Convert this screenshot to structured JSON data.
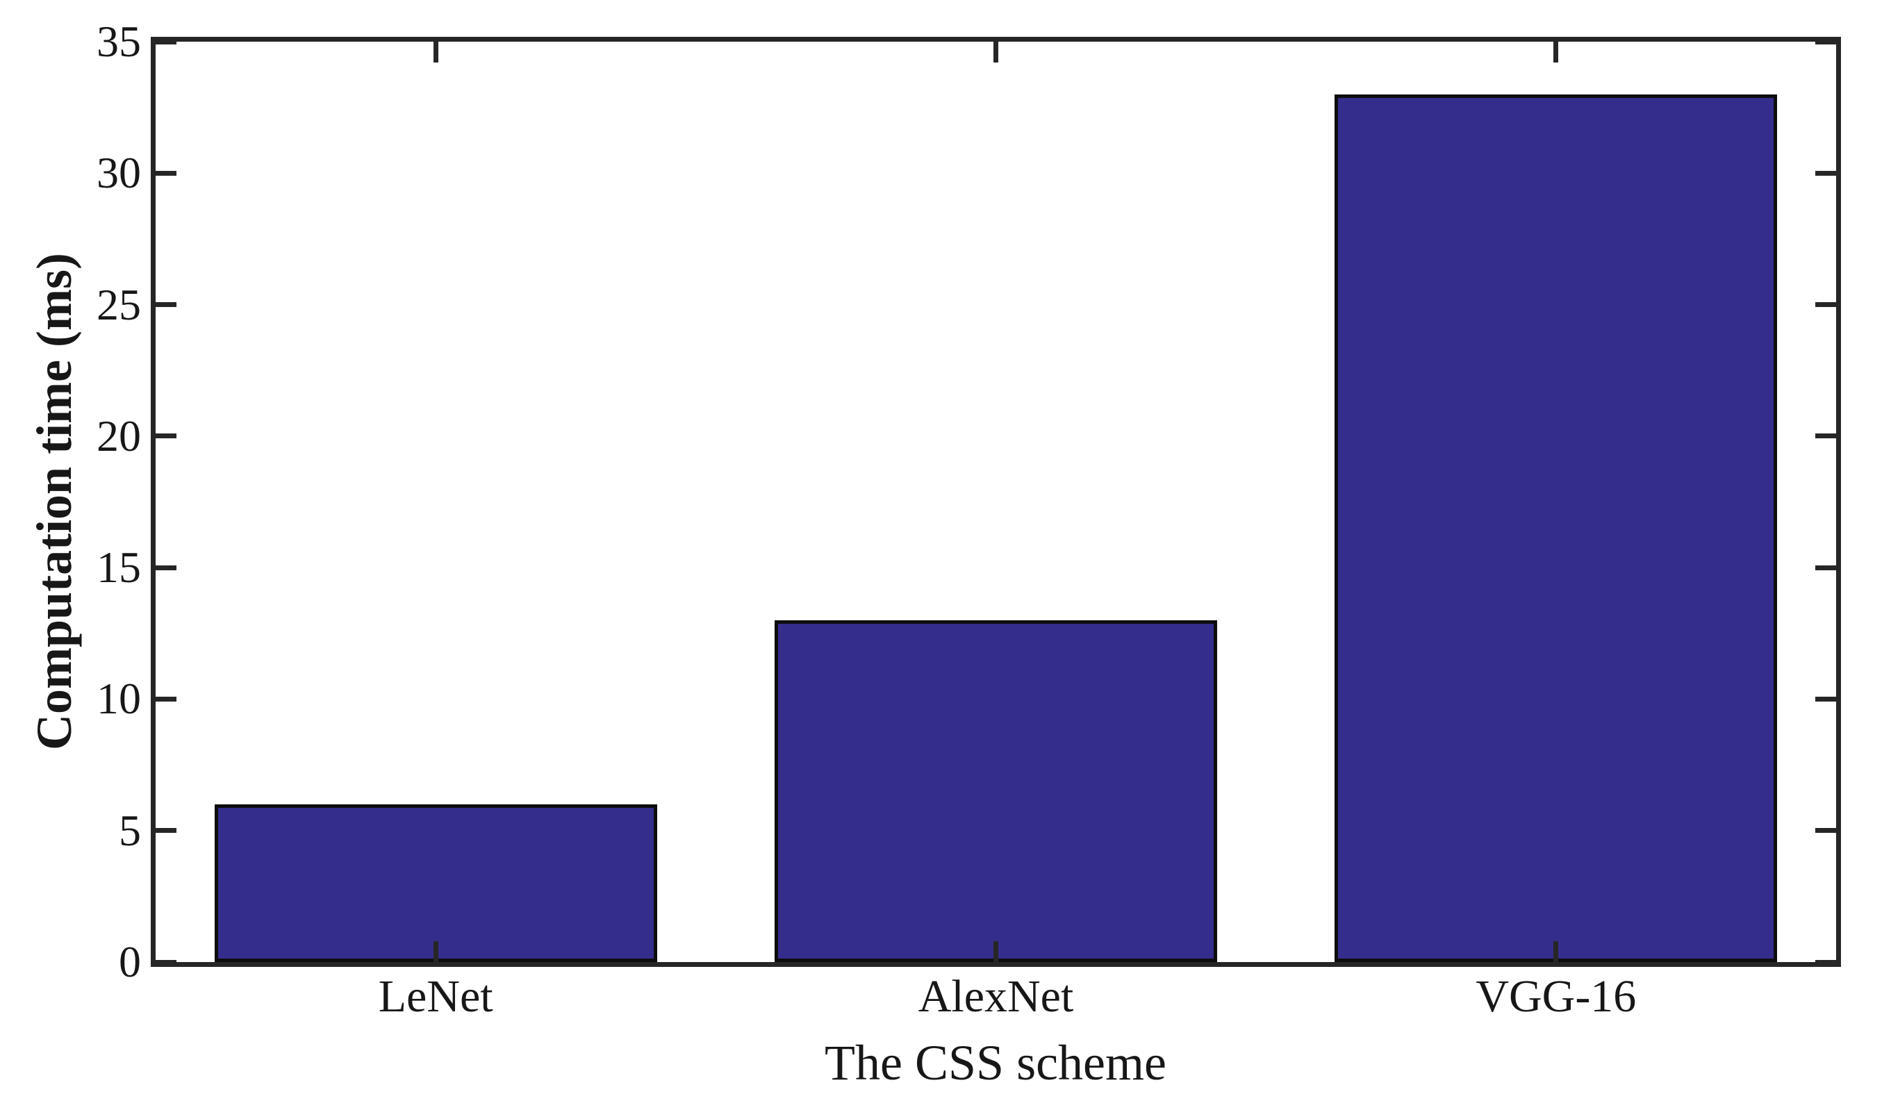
{
  "chart_data": {
    "type": "bar",
    "categories": [
      "LeNet",
      "AlexNet",
      "VGG-16"
    ],
    "values": [
      6,
      13,
      33
    ],
    "title": "",
    "xlabel": "The CSS scheme",
    "ylabel": "Computation time (ms)",
    "ylim": [
      0,
      35
    ],
    "yticks": [
      0,
      5,
      10,
      15,
      20,
      25,
      30,
      35
    ],
    "grid": false,
    "legend_position": "none",
    "bar_width_fraction": 0.79,
    "tick_direction": "in",
    "box": true,
    "colors": {
      "bar_fill": "#352d8c",
      "bar_edge": "#0d0d0d",
      "axis": "#262626",
      "text": "#171717",
      "background": "#ffffff"
    }
  }
}
